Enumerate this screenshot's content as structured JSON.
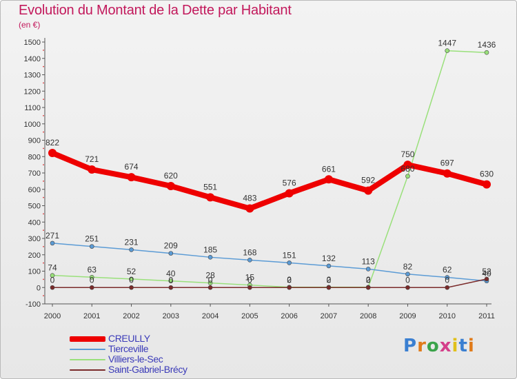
{
  "title": "Evolution du Montant de la Dette par Habitant",
  "subtitle": "(en €)",
  "brand": {
    "text": "Proxiti",
    "letter_colors": [
      "#3a7fd1",
      "#e07b1a",
      "#3aa34a",
      "#d43f8a",
      "#e0c01a",
      "#3a7fd1",
      "#e07b1a"
    ]
  },
  "chart_data": {
    "type": "line",
    "x": [
      "2000",
      "2001",
      "2002",
      "2003",
      "2004",
      "2005",
      "2006",
      "2007",
      "2008",
      "2009",
      "2010",
      "2011"
    ],
    "ylim": [
      -100,
      1500
    ],
    "yticks": [
      "-100",
      "0",
      "100",
      "200",
      "300",
      "400",
      "500",
      "600",
      "700",
      "800",
      "900",
      "1000",
      "1100",
      "1200",
      "1300",
      "1400",
      "1500"
    ],
    "grid": false,
    "legend_position": "bottom-left",
    "series": [
      {
        "name": "CREULLY",
        "color": "#ee0000",
        "values": [
          822,
          721,
          674,
          620,
          551,
          483,
          576,
          661,
          592,
          750,
          697,
          630
        ],
        "labels": [
          "822",
          "721",
          "674",
          "620",
          "551",
          "483",
          "576",
          "661",
          "592",
          "750",
          "697",
          "630"
        ]
      },
      {
        "name": "Tierceville",
        "color": "#5b9bd5",
        "values": [
          271,
          251,
          231,
          209,
          185,
          168,
          151,
          132,
          113,
          82,
          62,
          40
        ],
        "labels": [
          "271",
          "251",
          "231",
          "209",
          "185",
          "168",
          "151",
          "132",
          "113",
          "82",
          "62",
          "40"
        ]
      },
      {
        "name": "Villiers-le-Sec",
        "color": "#99e07a",
        "values": [
          74,
          63,
          52,
          40,
          28,
          15,
          2,
          2,
          2,
          680,
          1447,
          1436
        ],
        "labels": [
          "74",
          "63",
          "52",
          "40",
          "28",
          "15",
          "2",
          "2",
          "2",
          "680",
          "1447",
          "1436"
        ]
      },
      {
        "name": "Saint-Gabriel-Brécy",
        "color": "#7a2a2a",
        "values": [
          0,
          0,
          0,
          0,
          0,
          0,
          0,
          0,
          0,
          0,
          0,
          52
        ],
        "labels": [
          "0",
          "0",
          "0",
          "0",
          "0",
          "0",
          "0",
          "0",
          "0",
          "0",
          "0",
          "52"
        ]
      }
    ]
  }
}
